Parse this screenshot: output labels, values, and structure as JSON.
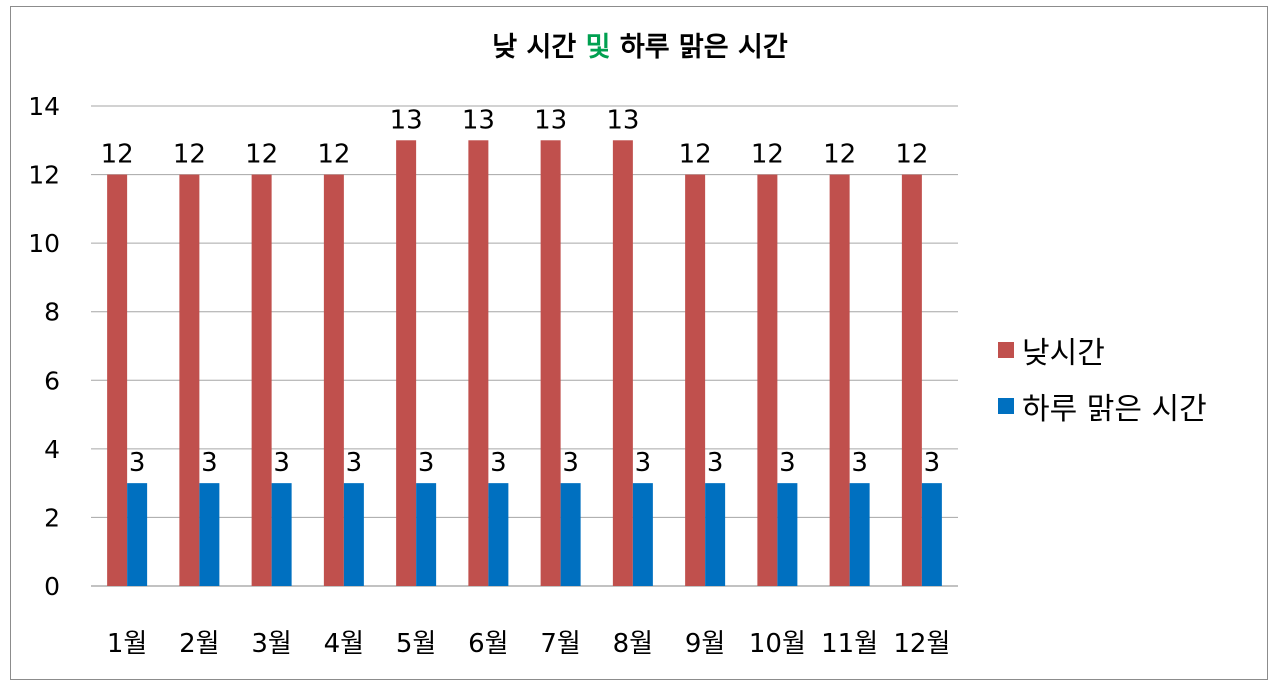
{
  "chart_data": {
    "type": "bar",
    "title": {
      "part1": "낮 시간 ",
      "highlight": "및",
      "part2": " 하루 맑은 시간"
    },
    "title_highlight_color": "#00a050",
    "categories": [
      "1월",
      "2월",
      "3월",
      "4월",
      "5월",
      "6월",
      "7월",
      "8월",
      "9월",
      "10월",
      "11월",
      "12월"
    ],
    "series": [
      {
        "name": "낮시간",
        "color": "#c0504d",
        "values": [
          12,
          12,
          12,
          12,
          13,
          13,
          13,
          13,
          12,
          12,
          12,
          12
        ]
      },
      {
        "name": "하루 맑은 시간",
        "color": "#0070c0",
        "values": [
          3,
          3,
          3,
          3,
          3,
          3,
          3,
          3,
          3,
          3,
          3,
          3
        ]
      }
    ],
    "ylim": [
      0,
      14
    ],
    "ytick_step": 2,
    "grid": true,
    "legend_position": "right",
    "data_labels": true
  }
}
